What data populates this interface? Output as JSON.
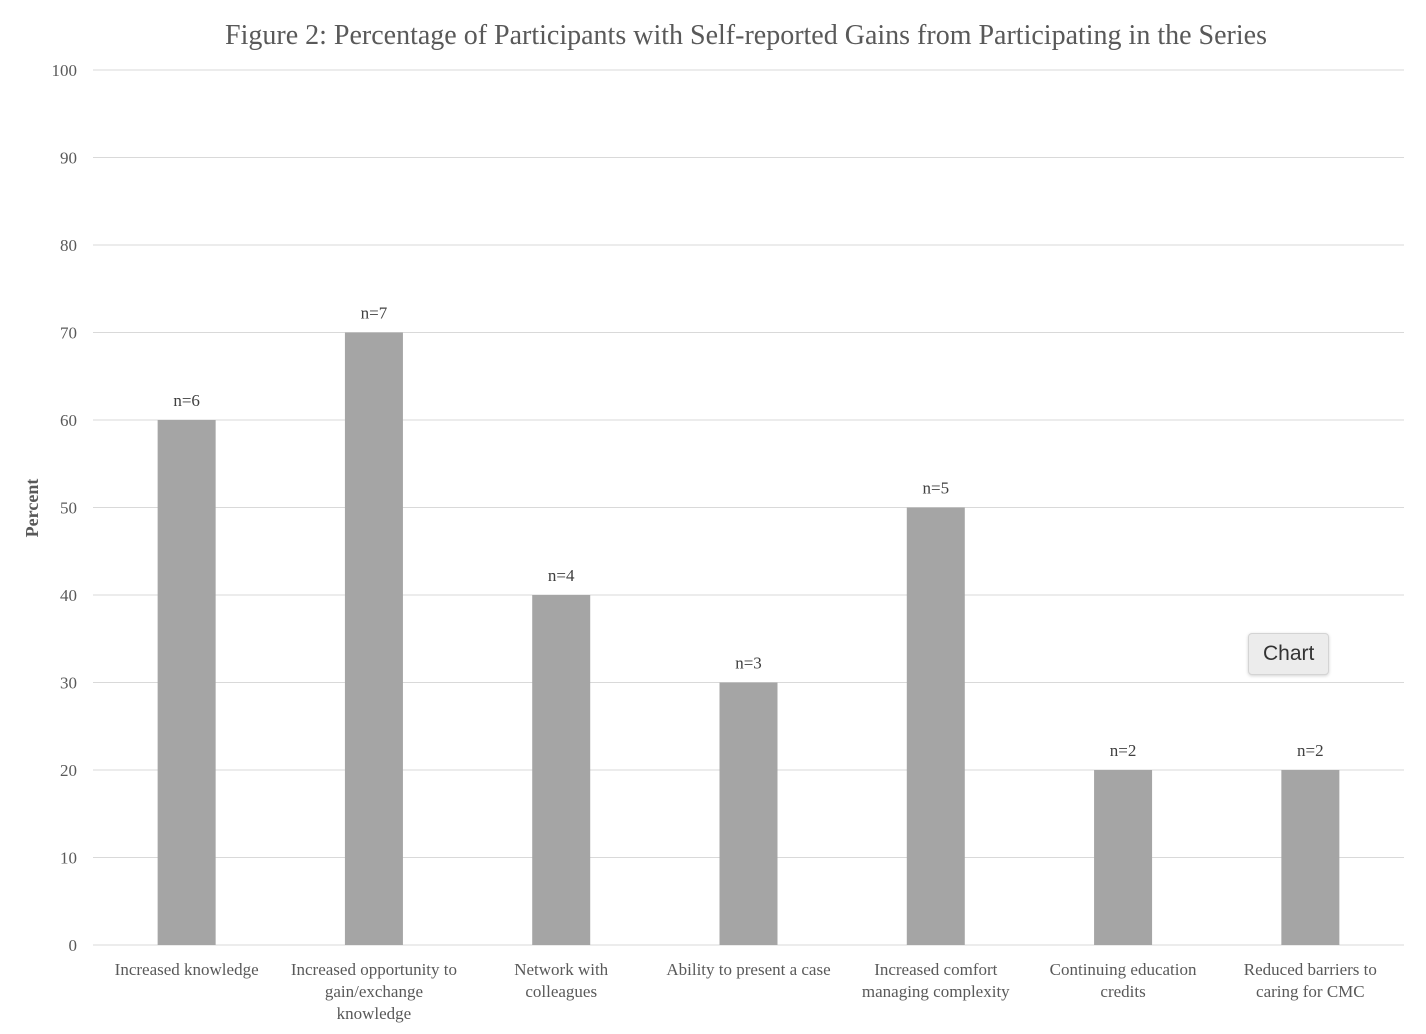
{
  "chart_data": {
    "type": "bar",
    "title": "Figure 2: Percentage of Participants with Self-reported Gains from Participating in the Series",
    "xlabel": "",
    "ylabel": "Percent",
    "ylim": [
      0,
      100
    ],
    "yticks": [
      "0",
      "10",
      "20",
      "30",
      "40",
      "50",
      "60",
      "70",
      "80",
      "90",
      "100"
    ],
    "grid": true,
    "legend": "none",
    "bar_color": "#a5a5a5",
    "categories": [
      [
        "Increased knowledge"
      ],
      [
        "Increased opportunity to",
        "gain/exchange",
        "knowledge"
      ],
      [
        "Network with",
        "colleagues"
      ],
      [
        "Ability to present a case"
      ],
      [
        "Increased comfort",
        "managing complexity"
      ],
      [
        "Continuing education",
        "credits"
      ],
      [
        "Reduced barriers to",
        "caring for CMC"
      ]
    ],
    "values": [
      60,
      70,
      40,
      30,
      50,
      20,
      20
    ],
    "data_labels": [
      "n=6",
      "n=7",
      "n=4",
      "n=3",
      "n=5",
      "n=2",
      "n=2"
    ]
  },
  "tooltip": {
    "text": "Chart"
  }
}
